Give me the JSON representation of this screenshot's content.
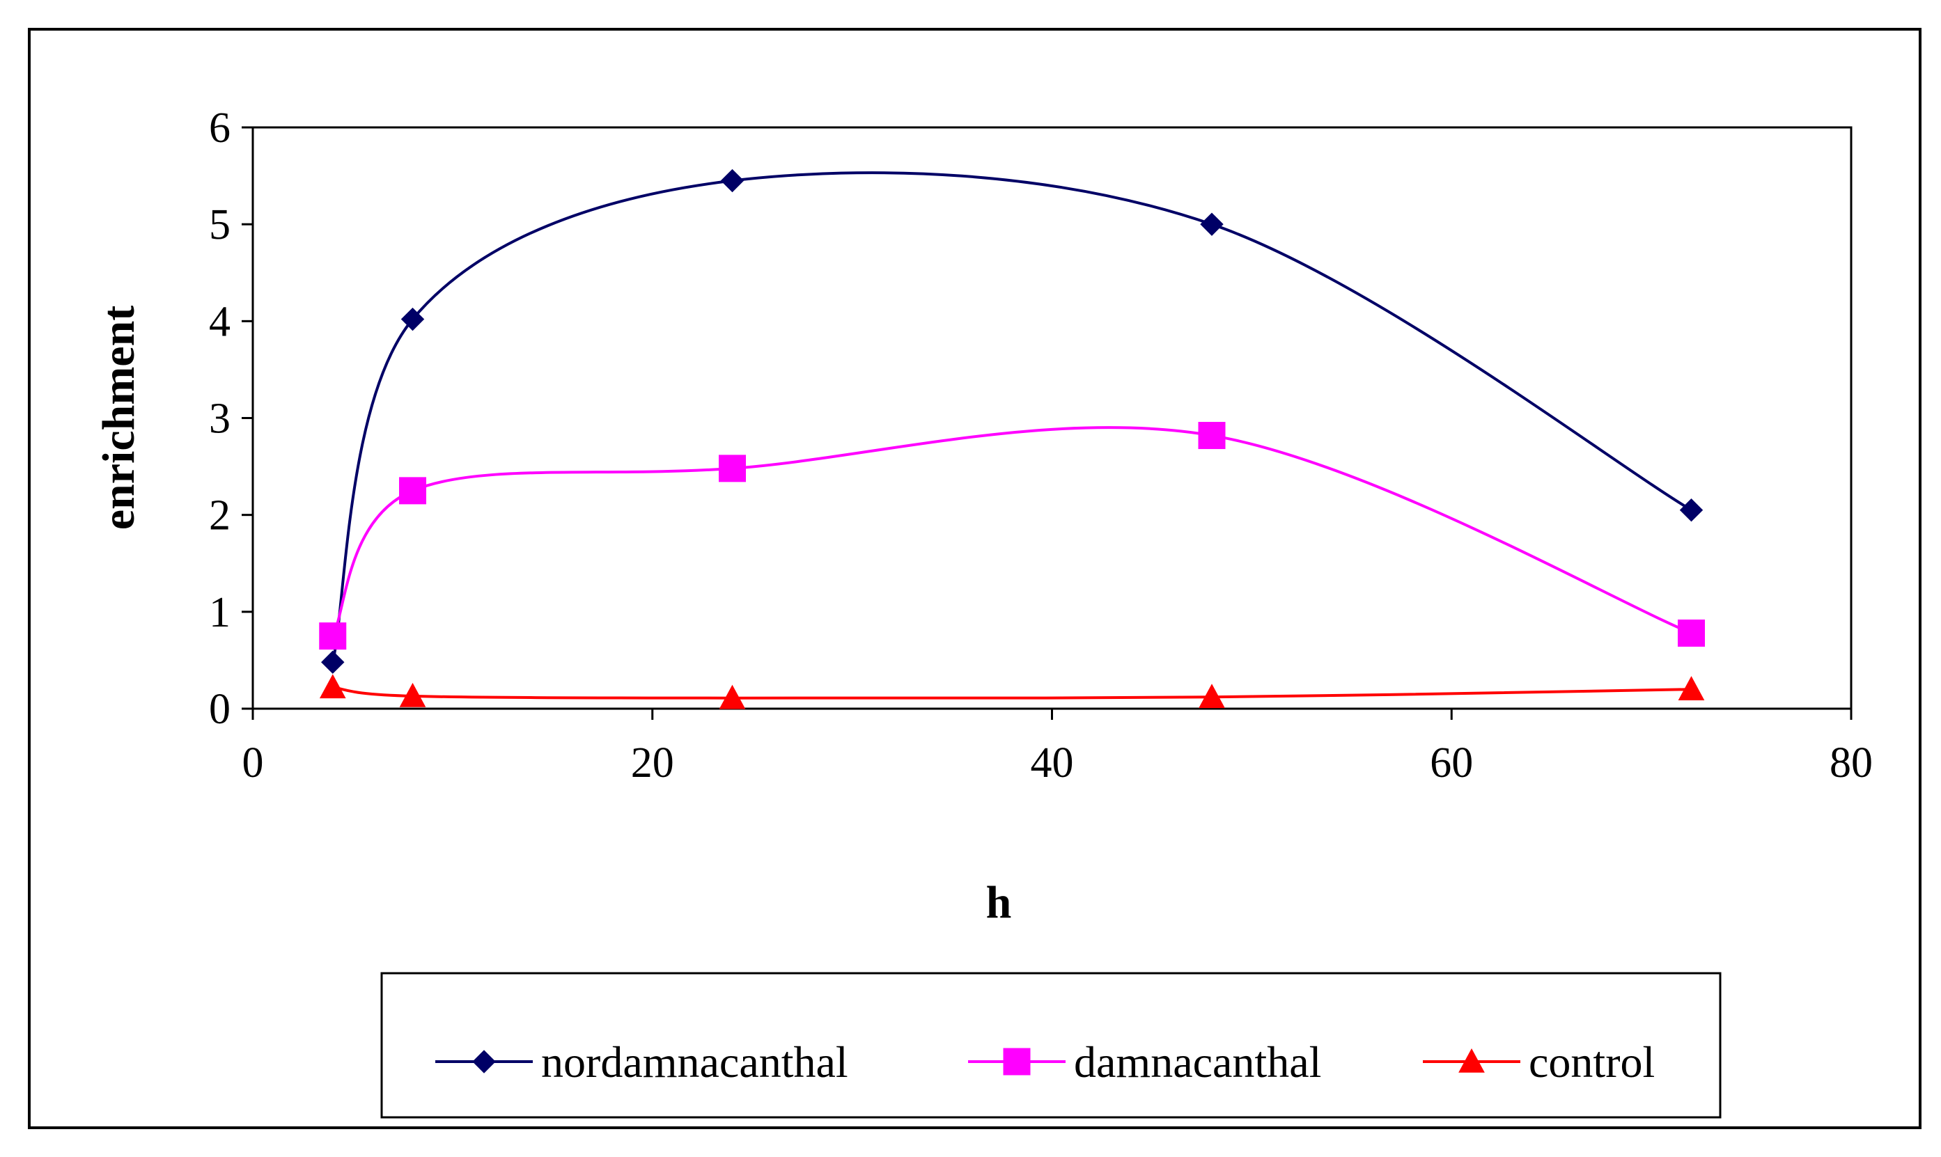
{
  "chart_data": {
    "type": "line",
    "title": "",
    "xlabel": "h",
    "ylabel": "enrichment",
    "xlim": [
      0,
      80
    ],
    "ylim": [
      0,
      6
    ],
    "xticks": [
      0,
      20,
      40,
      60,
      80
    ],
    "yticks": [
      0,
      1,
      2,
      3,
      4,
      5,
      6
    ],
    "xtick_labels": [
      "0",
      "20",
      "40",
      "60",
      "80"
    ],
    "ytick_labels": [
      "0",
      "1",
      "2",
      "3",
      "4",
      "5",
      "6"
    ],
    "grid": false,
    "smooth": true,
    "legend_position": "bottom",
    "x": [
      4,
      8,
      24,
      48,
      72
    ],
    "series": [
      {
        "name": "nordamnacanthal",
        "values": [
          0.48,
          4.02,
          5.45,
          5.0,
          2.05
        ],
        "color": "#000066",
        "marker": "diamond"
      },
      {
        "name": "damnacanthal",
        "values": [
          0.75,
          2.25,
          2.48,
          2.82,
          0.78
        ],
        "color": "#ff00ff",
        "marker": "square"
      },
      {
        "name": "control",
        "values": [
          0.22,
          0.13,
          0.11,
          0.12,
          0.2
        ],
        "color": "#ff0000",
        "marker": "triangle"
      }
    ]
  }
}
